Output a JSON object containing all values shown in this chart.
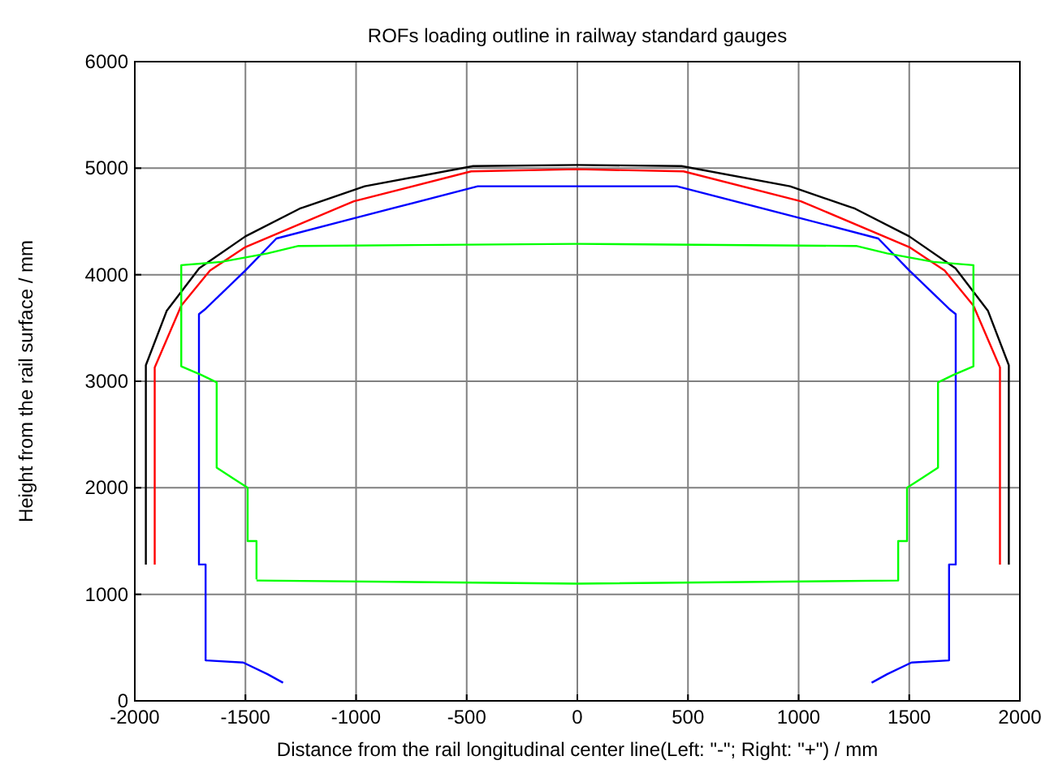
{
  "chart_data": {
    "type": "line",
    "title": "ROFs loading outline in railway standard gauges",
    "xlabel": "Distance from the rail longitudinal center line(Left: \"-\"; Right: \"+\") / mm",
    "ylabel": "Height from the rail surface / mm",
    "xlim": [
      -2000,
      2000
    ],
    "ylim": [
      0,
      6000
    ],
    "xticks": [
      -2000,
      -1500,
      -1000,
      -500,
      0,
      500,
      1000,
      1500,
      2000
    ],
    "yticks": [
      0,
      1000,
      2000,
      3000,
      4000,
      5000,
      6000
    ],
    "grid": true,
    "marker": "none",
    "line_style": "solid",
    "series": [
      {
        "color": "#000000",
        "x": [
          -1950,
          -1950,
          -1856,
          -1709,
          -1500,
          -1255,
          -961,
          -471,
          0,
          471,
          961,
          1255,
          1500,
          1709,
          1856,
          1950,
          1950
        ],
        "values": [
          1280,
          3150,
          3660,
          4060,
          4360,
          4620,
          4830,
          5020,
          5030,
          5020,
          4830,
          4620,
          4360,
          4060,
          3660,
          3150,
          1280
        ]
      },
      {
        "color": "#ff0000",
        "x": [
          -1910,
          -1910,
          -1790,
          -1660,
          -1500,
          -1010,
          -480,
          0,
          480,
          1010,
          1500,
          1660,
          1790,
          1910,
          1910
        ],
        "values": [
          1280,
          3130,
          3710,
          4040,
          4260,
          4690,
          4970,
          4990,
          4970,
          4690,
          4260,
          4040,
          3710,
          3130,
          1280
        ]
      },
      {
        "color": "#0000ff",
        "x": [
          -1330,
          -1400,
          -1510,
          -1680,
          -1680,
          -1710,
          -1710,
          -1680,
          -1500,
          -1360,
          -1010,
          -450,
          0,
          450,
          1010,
          1360,
          1500,
          1680,
          1710,
          1710,
          1680,
          1680,
          1510,
          1400,
          1330
        ],
        "values": [
          170,
          250,
          360,
          380,
          1280,
          1280,
          3630,
          3680,
          4040,
          4340,
          4530,
          4830,
          4830,
          4830,
          4530,
          4340,
          4040,
          3680,
          3630,
          1280,
          1280,
          380,
          360,
          250,
          170
        ]
      },
      {
        "color": "#00ff00",
        "x": [
          -1450,
          0,
          1450,
          1450,
          1490,
          1490,
          1550,
          1630,
          1630,
          1700,
          1790,
          1790,
          1610,
          1400,
          1260,
          0,
          -1260,
          -1400,
          -1610,
          -1790,
          -1790,
          -1700,
          -1630,
          -1630,
          -1550,
          -1490,
          -1490,
          -1450,
          -1450
        ],
        "values": [
          1130,
          1100,
          1130,
          1500,
          1500,
          2000,
          2080,
          2190,
          2990,
          3060,
          3140,
          4090,
          4120,
          4200,
          4270,
          4290,
          4270,
          4200,
          4120,
          4090,
          3140,
          3060,
          2990,
          2190,
          2080,
          2000,
          1500,
          1500,
          1140
        ]
      }
    ]
  }
}
